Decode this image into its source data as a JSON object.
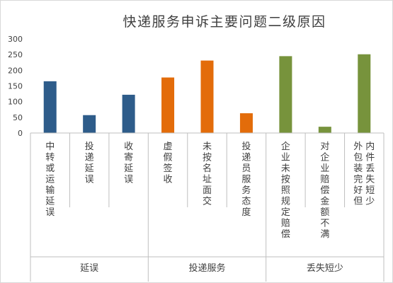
{
  "chart_data": {
    "type": "bar",
    "title": "快递服务申诉主要问题二级原因",
    "xlabel": "",
    "ylabel": "",
    "ylim": [
      0,
      300
    ],
    "yticks": [
      0,
      50,
      100,
      150,
      200,
      250,
      300
    ],
    "grid": false,
    "legend": "none",
    "categories": [
      "中转或运输延误",
      "投递延误",
      "收寄延误",
      "虚假签收",
      "未按名址面交",
      "投递员服务态度",
      "企业未按照规定赔偿",
      "对企业赔偿金额不满",
      "外包装完好但内件丢失短少"
    ],
    "groups": [
      {
        "label": "延误",
        "color": "#2E5C8A",
        "indices": [
          0,
          1,
          2
        ]
      },
      {
        "label": "投递服务",
        "color": "#E36C0A",
        "indices": [
          3,
          4,
          5
        ]
      },
      {
        "label": "丢失短少",
        "color": "#77933C",
        "indices": [
          6,
          7,
          8
        ]
      }
    ],
    "values": [
      165,
      57,
      122,
      177,
      231,
      63,
      245,
      20,
      251
    ]
  },
  "colors": {
    "axis": "#bfbfbf",
    "text": "#404040",
    "title": "#404040"
  }
}
